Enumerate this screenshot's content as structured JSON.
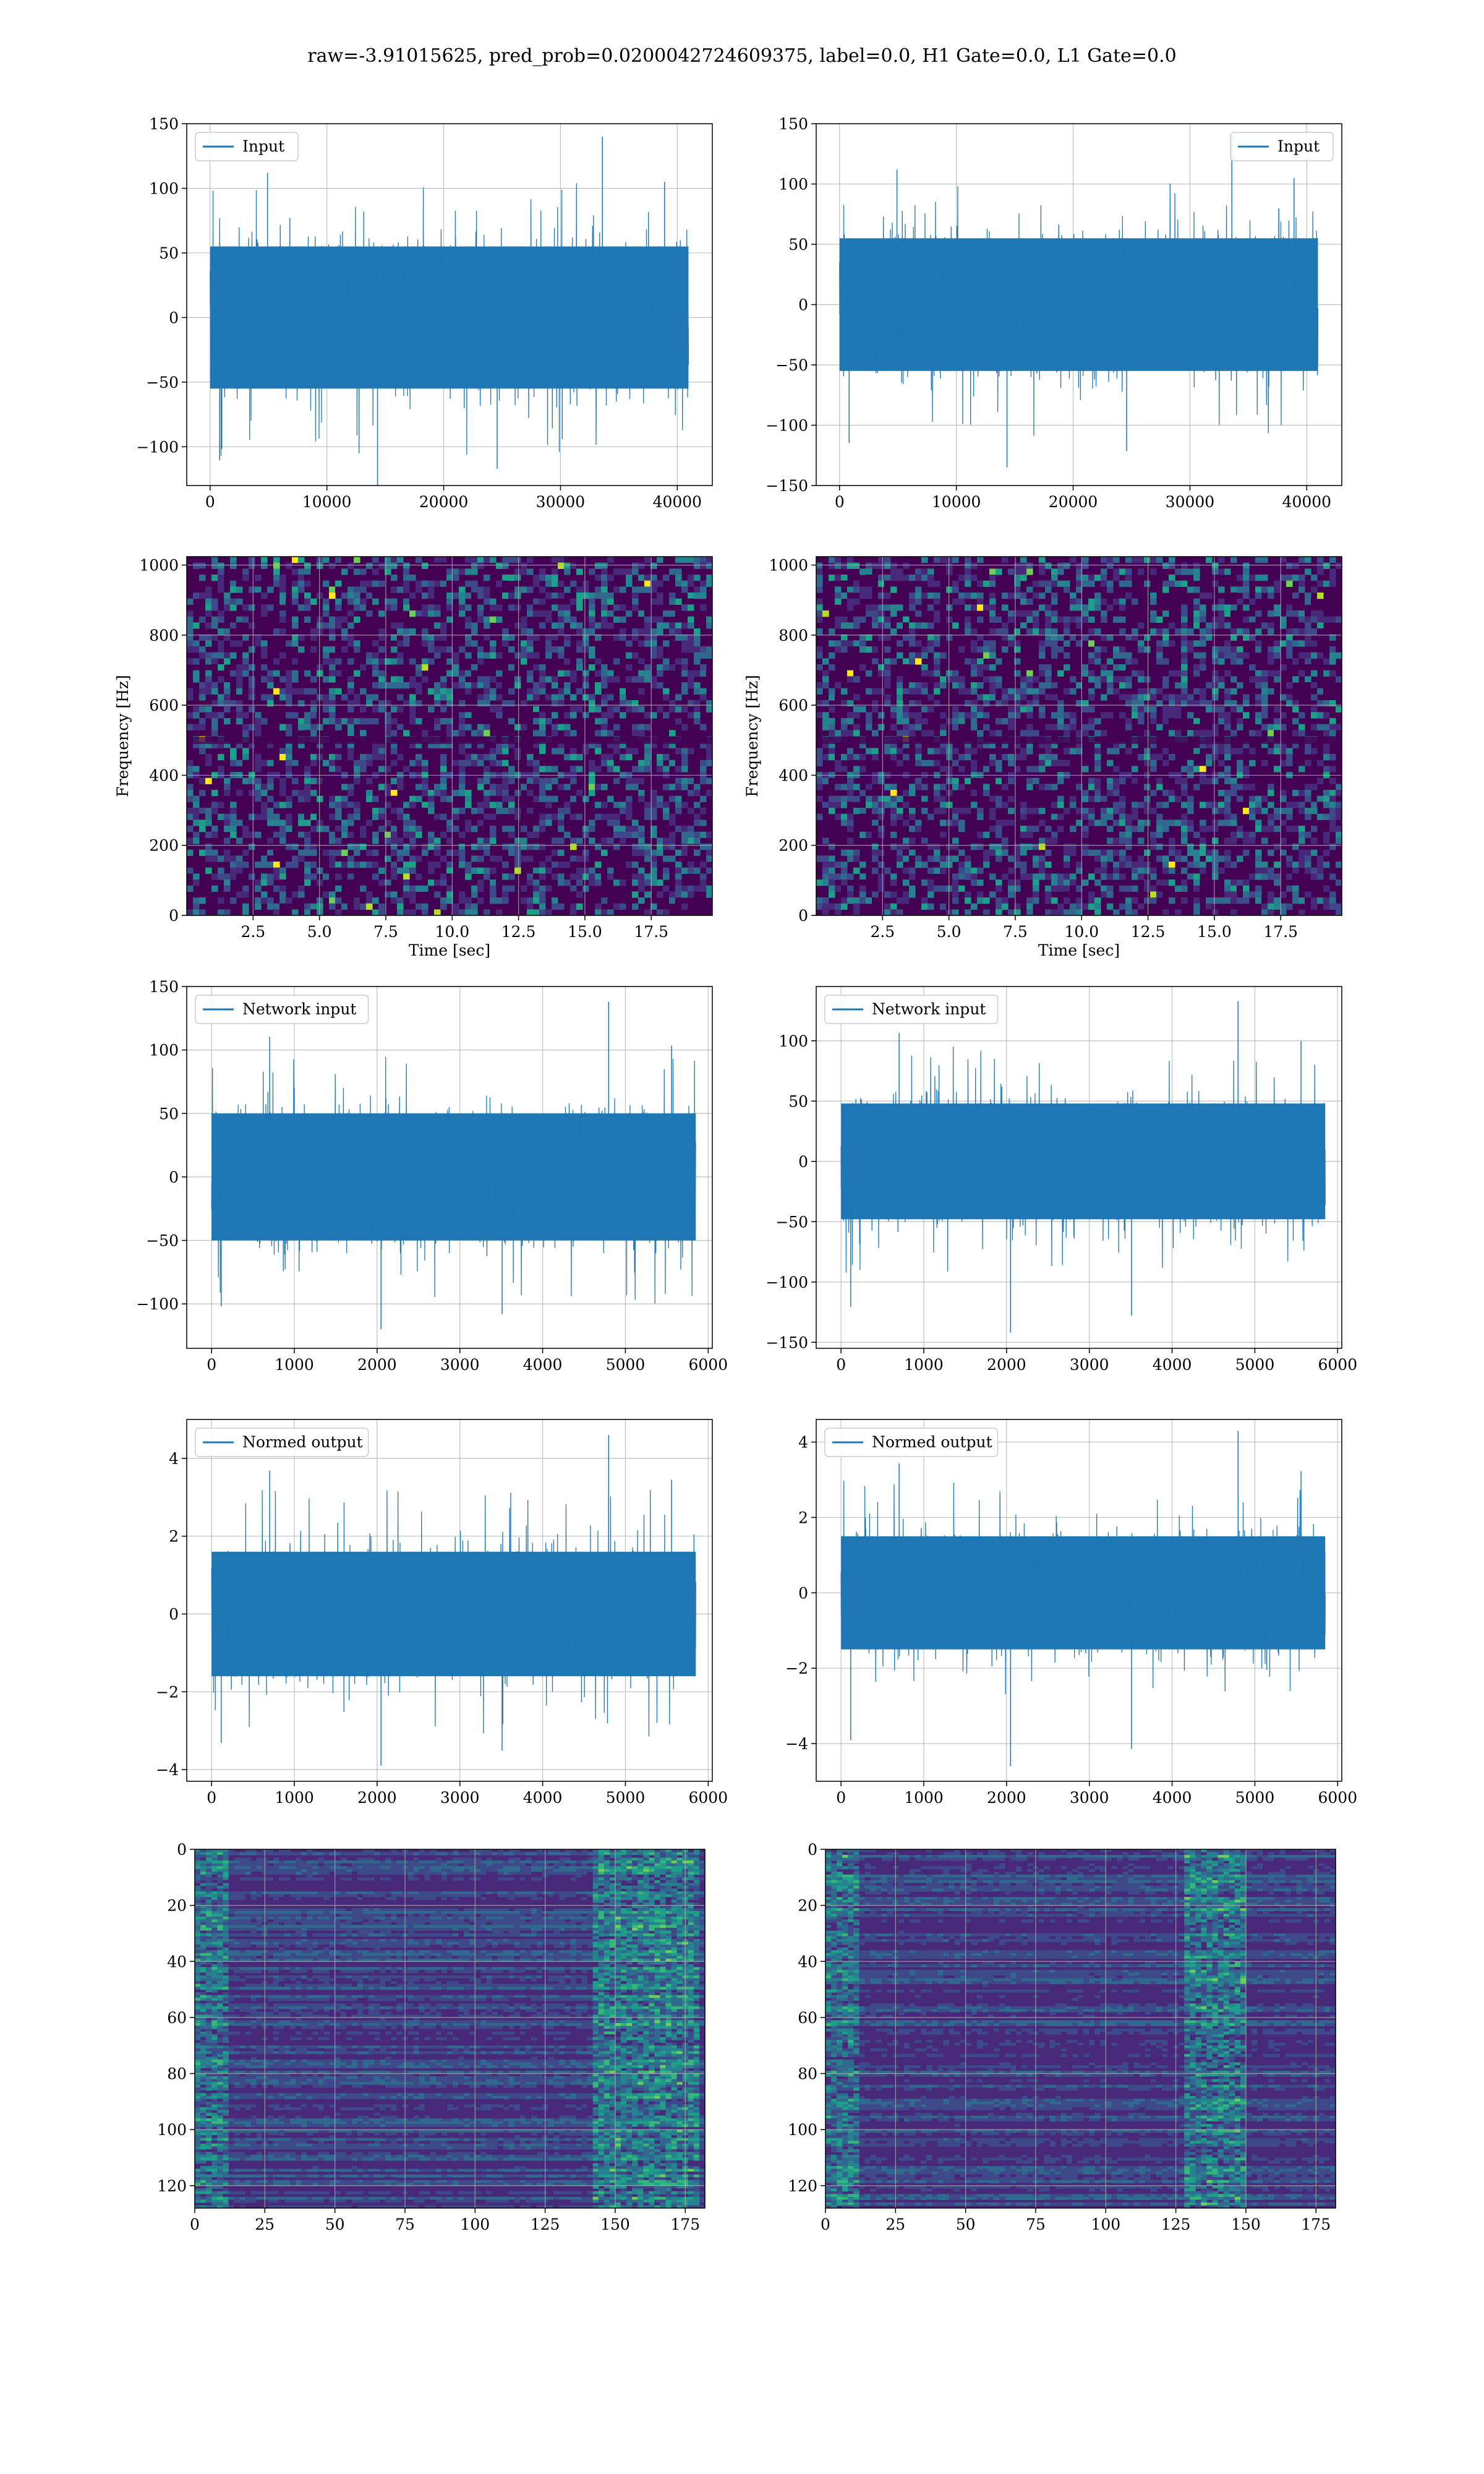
{
  "title": "raw=-3.91015625, pred_prob=0.0200042724609375, label=0.0, H1 Gate=0.0, L1 Gate=0.0",
  "colors": {
    "line": "#1f77b4",
    "grid": "#b0b0b0",
    "viridis": [
      "#440154",
      "#482878",
      "#3e4989",
      "#31688e",
      "#26828e",
      "#1f9e89",
      "#35b779",
      "#6ece58",
      "#b5de2b",
      "#fde725"
    ]
  },
  "chart_data": [
    {
      "id": "input-h1",
      "type": "line",
      "legend": "Input",
      "legend_loc": "upper-left",
      "xlim": [
        -2000,
        43000
      ],
      "ylim": [
        -130,
        150
      ],
      "xticks": [
        0,
        10000,
        20000,
        30000,
        40000
      ],
      "xtick_labels": [
        "0",
        "10000",
        "20000",
        "30000",
        "40000"
      ],
      "yticks": [
        -100,
        -50,
        0,
        50,
        100,
        150
      ],
      "ytick_labels": [
        "−100",
        "−50",
        "0",
        "50",
        "100",
        "150"
      ],
      "xlabel": "",
      "ylabel": "",
      "grid": true,
      "signal": {
        "x_max": 40960,
        "band": 55,
        "max": 140,
        "min": -130
      }
    },
    {
      "id": "input-l1",
      "type": "line",
      "legend": "Input",
      "legend_loc": "upper-right",
      "xlim": [
        -2000,
        43000
      ],
      "ylim": [
        -150,
        150
      ],
      "xticks": [
        0,
        10000,
        20000,
        30000,
        40000
      ],
      "xtick_labels": [
        "0",
        "10000",
        "20000",
        "30000",
        "40000"
      ],
      "yticks": [
        -150,
        -100,
        -50,
        0,
        50,
        100,
        150
      ],
      "ytick_labels": [
        "−150",
        "−100",
        "−50",
        "0",
        "50",
        "100",
        "150"
      ],
      "xlabel": "",
      "ylabel": "",
      "grid": true,
      "signal": {
        "x_max": 40960,
        "band": 55,
        "max": 140,
        "min": -135
      }
    },
    {
      "id": "spectrogram-h1",
      "type": "heatmap",
      "legend": "",
      "xlim": [
        0,
        19.8
      ],
      "ylim": [
        0,
        1024
      ],
      "xticks": [
        2.5,
        5.0,
        7.5,
        10.0,
        12.5,
        15.0,
        17.5
      ],
      "xtick_labels": [
        "2.5",
        "5.0",
        "7.5",
        "10.0",
        "12.5",
        "15.0",
        "17.5"
      ],
      "yticks": [
        0,
        200,
        400,
        600,
        800,
        1000
      ],
      "ytick_labels": [
        "0",
        "200",
        "400",
        "600",
        "800",
        "1000"
      ],
      "xlabel": "Time [sec]",
      "ylabel": "Frequency [Hz]",
      "grid": true
    },
    {
      "id": "spectrogram-l1",
      "type": "heatmap",
      "legend": "",
      "xlim": [
        0,
        19.8
      ],
      "ylim": [
        0,
        1024
      ],
      "xticks": [
        2.5,
        5.0,
        7.5,
        10.0,
        12.5,
        15.0,
        17.5
      ],
      "xtick_labels": [
        "2.5",
        "5.0",
        "7.5",
        "10.0",
        "12.5",
        "15.0",
        "17.5"
      ],
      "yticks": [
        0,
        200,
        400,
        600,
        800,
        1000
      ],
      "ytick_labels": [
        "0",
        "200",
        "400",
        "600",
        "800",
        "1000"
      ],
      "xlabel": "Time [sec]",
      "ylabel": "Frequency [Hz]",
      "grid": true
    },
    {
      "id": "network-input-h1",
      "type": "line",
      "legend": "Network input",
      "legend_loc": "upper-left",
      "xlim": [
        -300,
        6050
      ],
      "ylim": [
        -135,
        150
      ],
      "xticks": [
        0,
        1000,
        2000,
        3000,
        4000,
        5000,
        6000
      ],
      "xtick_labels": [
        "0",
        "1000",
        "2000",
        "3000",
        "4000",
        "5000",
        "6000"
      ],
      "yticks": [
        -100,
        -50,
        0,
        50,
        100,
        150
      ],
      "ytick_labels": [
        "−100",
        "−50",
        "0",
        "50",
        "100",
        "150"
      ],
      "xlabel": "",
      "ylabel": "",
      "grid": true,
      "signal": {
        "x_max": 5850,
        "band": 50,
        "max": 138,
        "min": -120
      }
    },
    {
      "id": "network-input-l1",
      "type": "line",
      "legend": "Network input",
      "legend_loc": "upper-left",
      "xlim": [
        -300,
        6050
      ],
      "ylim": [
        -155,
        145
      ],
      "xticks": [
        0,
        1000,
        2000,
        3000,
        4000,
        5000,
        6000
      ],
      "xtick_labels": [
        "0",
        "1000",
        "2000",
        "3000",
        "4000",
        "5000",
        "6000"
      ],
      "yticks": [
        -150,
        -100,
        -50,
        0,
        50,
        100
      ],
      "ytick_labels": [
        "−150",
        "−100",
        "−50",
        "0",
        "50",
        "100"
      ],
      "xlabel": "",
      "ylabel": "",
      "grid": true,
      "signal": {
        "x_max": 5850,
        "band": 48,
        "max": 133,
        "min": -142
      }
    },
    {
      "id": "normed-output-h1",
      "type": "line",
      "legend": "Normed output",
      "legend_loc": "upper-left",
      "xlim": [
        -300,
        6050
      ],
      "ylim": [
        -4.3,
        5.0
      ],
      "xticks": [
        0,
        1000,
        2000,
        3000,
        4000,
        5000,
        6000
      ],
      "xtick_labels": [
        "0",
        "1000",
        "2000",
        "3000",
        "4000",
        "5000",
        "6000"
      ],
      "yticks": [
        -4,
        -2,
        0,
        2,
        4
      ],
      "ytick_labels": [
        "−4",
        "−2",
        "0",
        "2",
        "4"
      ],
      "xlabel": "",
      "ylabel": "",
      "grid": true,
      "signal": {
        "x_max": 5850,
        "band": 1.6,
        "max": 4.6,
        "min": -3.9
      }
    },
    {
      "id": "normed-output-l1",
      "type": "line",
      "legend": "Normed output",
      "legend_loc": "upper-left",
      "xlim": [
        -300,
        6050
      ],
      "ylim": [
        -5.0,
        4.6
      ],
      "xticks": [
        0,
        1000,
        2000,
        3000,
        4000,
        5000,
        6000
      ],
      "xtick_labels": [
        "0",
        "1000",
        "2000",
        "3000",
        "4000",
        "5000",
        "6000"
      ],
      "yticks": [
        -4,
        -2,
        0,
        2,
        4
      ],
      "ytick_labels": [
        "−4",
        "−2",
        "0",
        "2",
        "4"
      ],
      "xlabel": "",
      "ylabel": "",
      "grid": true,
      "signal": {
        "x_max": 5850,
        "band": 1.5,
        "max": 4.3,
        "min": -4.6
      }
    },
    {
      "id": "feature-map-h1",
      "type": "heatmap",
      "legend": "",
      "xlim": [
        0,
        182
      ],
      "ylim": [
        128,
        0
      ],
      "xticks": [
        0,
        25,
        50,
        75,
        100,
        125,
        150,
        175
      ],
      "xtick_labels": [
        "0",
        "25",
        "50",
        "75",
        "100",
        "125",
        "150",
        "175"
      ],
      "yticks": [
        0,
        20,
        40,
        60,
        80,
        100,
        120
      ],
      "ytick_labels": [
        "0",
        "20",
        "40",
        "60",
        "80",
        "100",
        "120"
      ],
      "xlabel": "",
      "ylabel": "",
      "grid": true
    },
    {
      "id": "feature-map-l1",
      "type": "heatmap",
      "legend": "",
      "xlim": [
        0,
        182
      ],
      "ylim": [
        128,
        0
      ],
      "xticks": [
        0,
        25,
        50,
        75,
        100,
        125,
        150,
        175
      ],
      "xtick_labels": [
        "0",
        "25",
        "50",
        "75",
        "100",
        "125",
        "150",
        "175"
      ],
      "yticks": [
        0,
        20,
        40,
        60,
        80,
        100,
        120
      ],
      "ytick_labels": [
        "0",
        "20",
        "40",
        "60",
        "80",
        "100",
        "120"
      ],
      "xlabel": "",
      "ylabel": "",
      "grid": true
    }
  ]
}
